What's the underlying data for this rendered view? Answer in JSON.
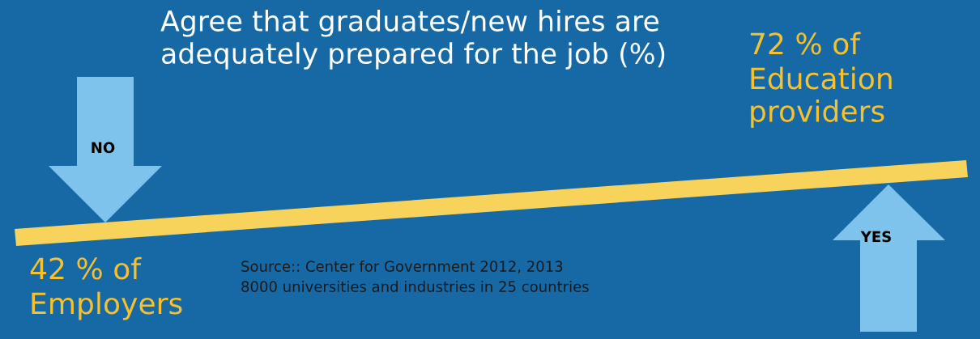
{
  "chart_data": {
    "type": "other",
    "title": "Agree that graduates/new hires are\nadequately prepared for the job (%)",
    "categories": [
      "Employers",
      "Education\nproviders"
    ],
    "values": [
      42,
      72
    ],
    "value_labels": [
      "42 % of",
      "72 % of"
    ],
    "colors": [
      "#f5c12e",
      "#f5c12e"
    ],
    "annotations": [
      "Source:: Center for Government 2012, 2013\n8000 universities and industries in 25 countries",
      "NO",
      "YES"
    ]
  }
}
